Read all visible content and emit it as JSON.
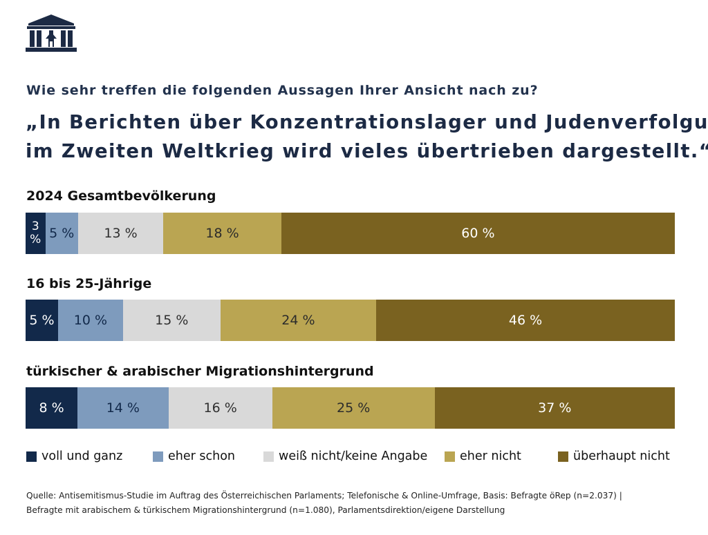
{
  "header": {
    "question": "Wie sehr treffen die folgenden Aussagen Ihrer Ansicht nach zu?",
    "quote_lines": [
      "„In Berichten über Konzentrationslager und Judenverfolgung",
      "im Zweiten Weltkrieg wird vieles übertrieben dargestellt.“"
    ]
  },
  "chart_data": {
    "type": "bar",
    "orientation": "horizontal-stacked-100",
    "categories": [
      "2024 Gesamtbevölkerung",
      "16 bis 25-Jährige",
      "türkischer & arabischer Migrationshintergrund"
    ],
    "series": [
      {
        "name": "voll und ganz",
        "color": "#12294a",
        "values": [
          3,
          5,
          8
        ],
        "labels": [
          "3 %",
          "5 %",
          "8 %"
        ]
      },
      {
        "name": "eher schon",
        "color": "#7e9bbd",
        "values": [
          5,
          10,
          14
        ],
        "labels": [
          "5 %",
          "10 %",
          "14 %"
        ]
      },
      {
        "name": "weiß nicht/keine Angabe",
        "color": "#d9d9d9",
        "values": [
          13,
          15,
          16
        ],
        "labels": [
          "13 %",
          "15 %",
          "16 %"
        ]
      },
      {
        "name": "eher nicht",
        "color": "#baa552",
        "values": [
          18,
          24,
          25
        ],
        "labels": [
          "18 %",
          "24 %",
          "25 %"
        ]
      },
      {
        "name": "überhaupt nicht",
        "color": "#7a6220",
        "values": [
          60,
          46,
          37
        ],
        "labels": [
          "60 %",
          "46 %",
          "37 %"
        ]
      }
    ],
    "legend_position": "bottom",
    "grid": false
  },
  "footer": {
    "source_lines": [
      "Quelle: Antisemitismus-Studie im Auftrag des Österreichischen Parlaments; Telefonische & Online-Umfrage, Basis: Befragte öRep (n=2.037) |",
      "Befragte mit arabischem & türkischem Migrationshintergrund (n=1.080), Parlamentsdirektion/eigene Darstellung"
    ]
  },
  "logo": {
    "icon": "parliament-building-icon",
    "color": "#1c2a44"
  }
}
